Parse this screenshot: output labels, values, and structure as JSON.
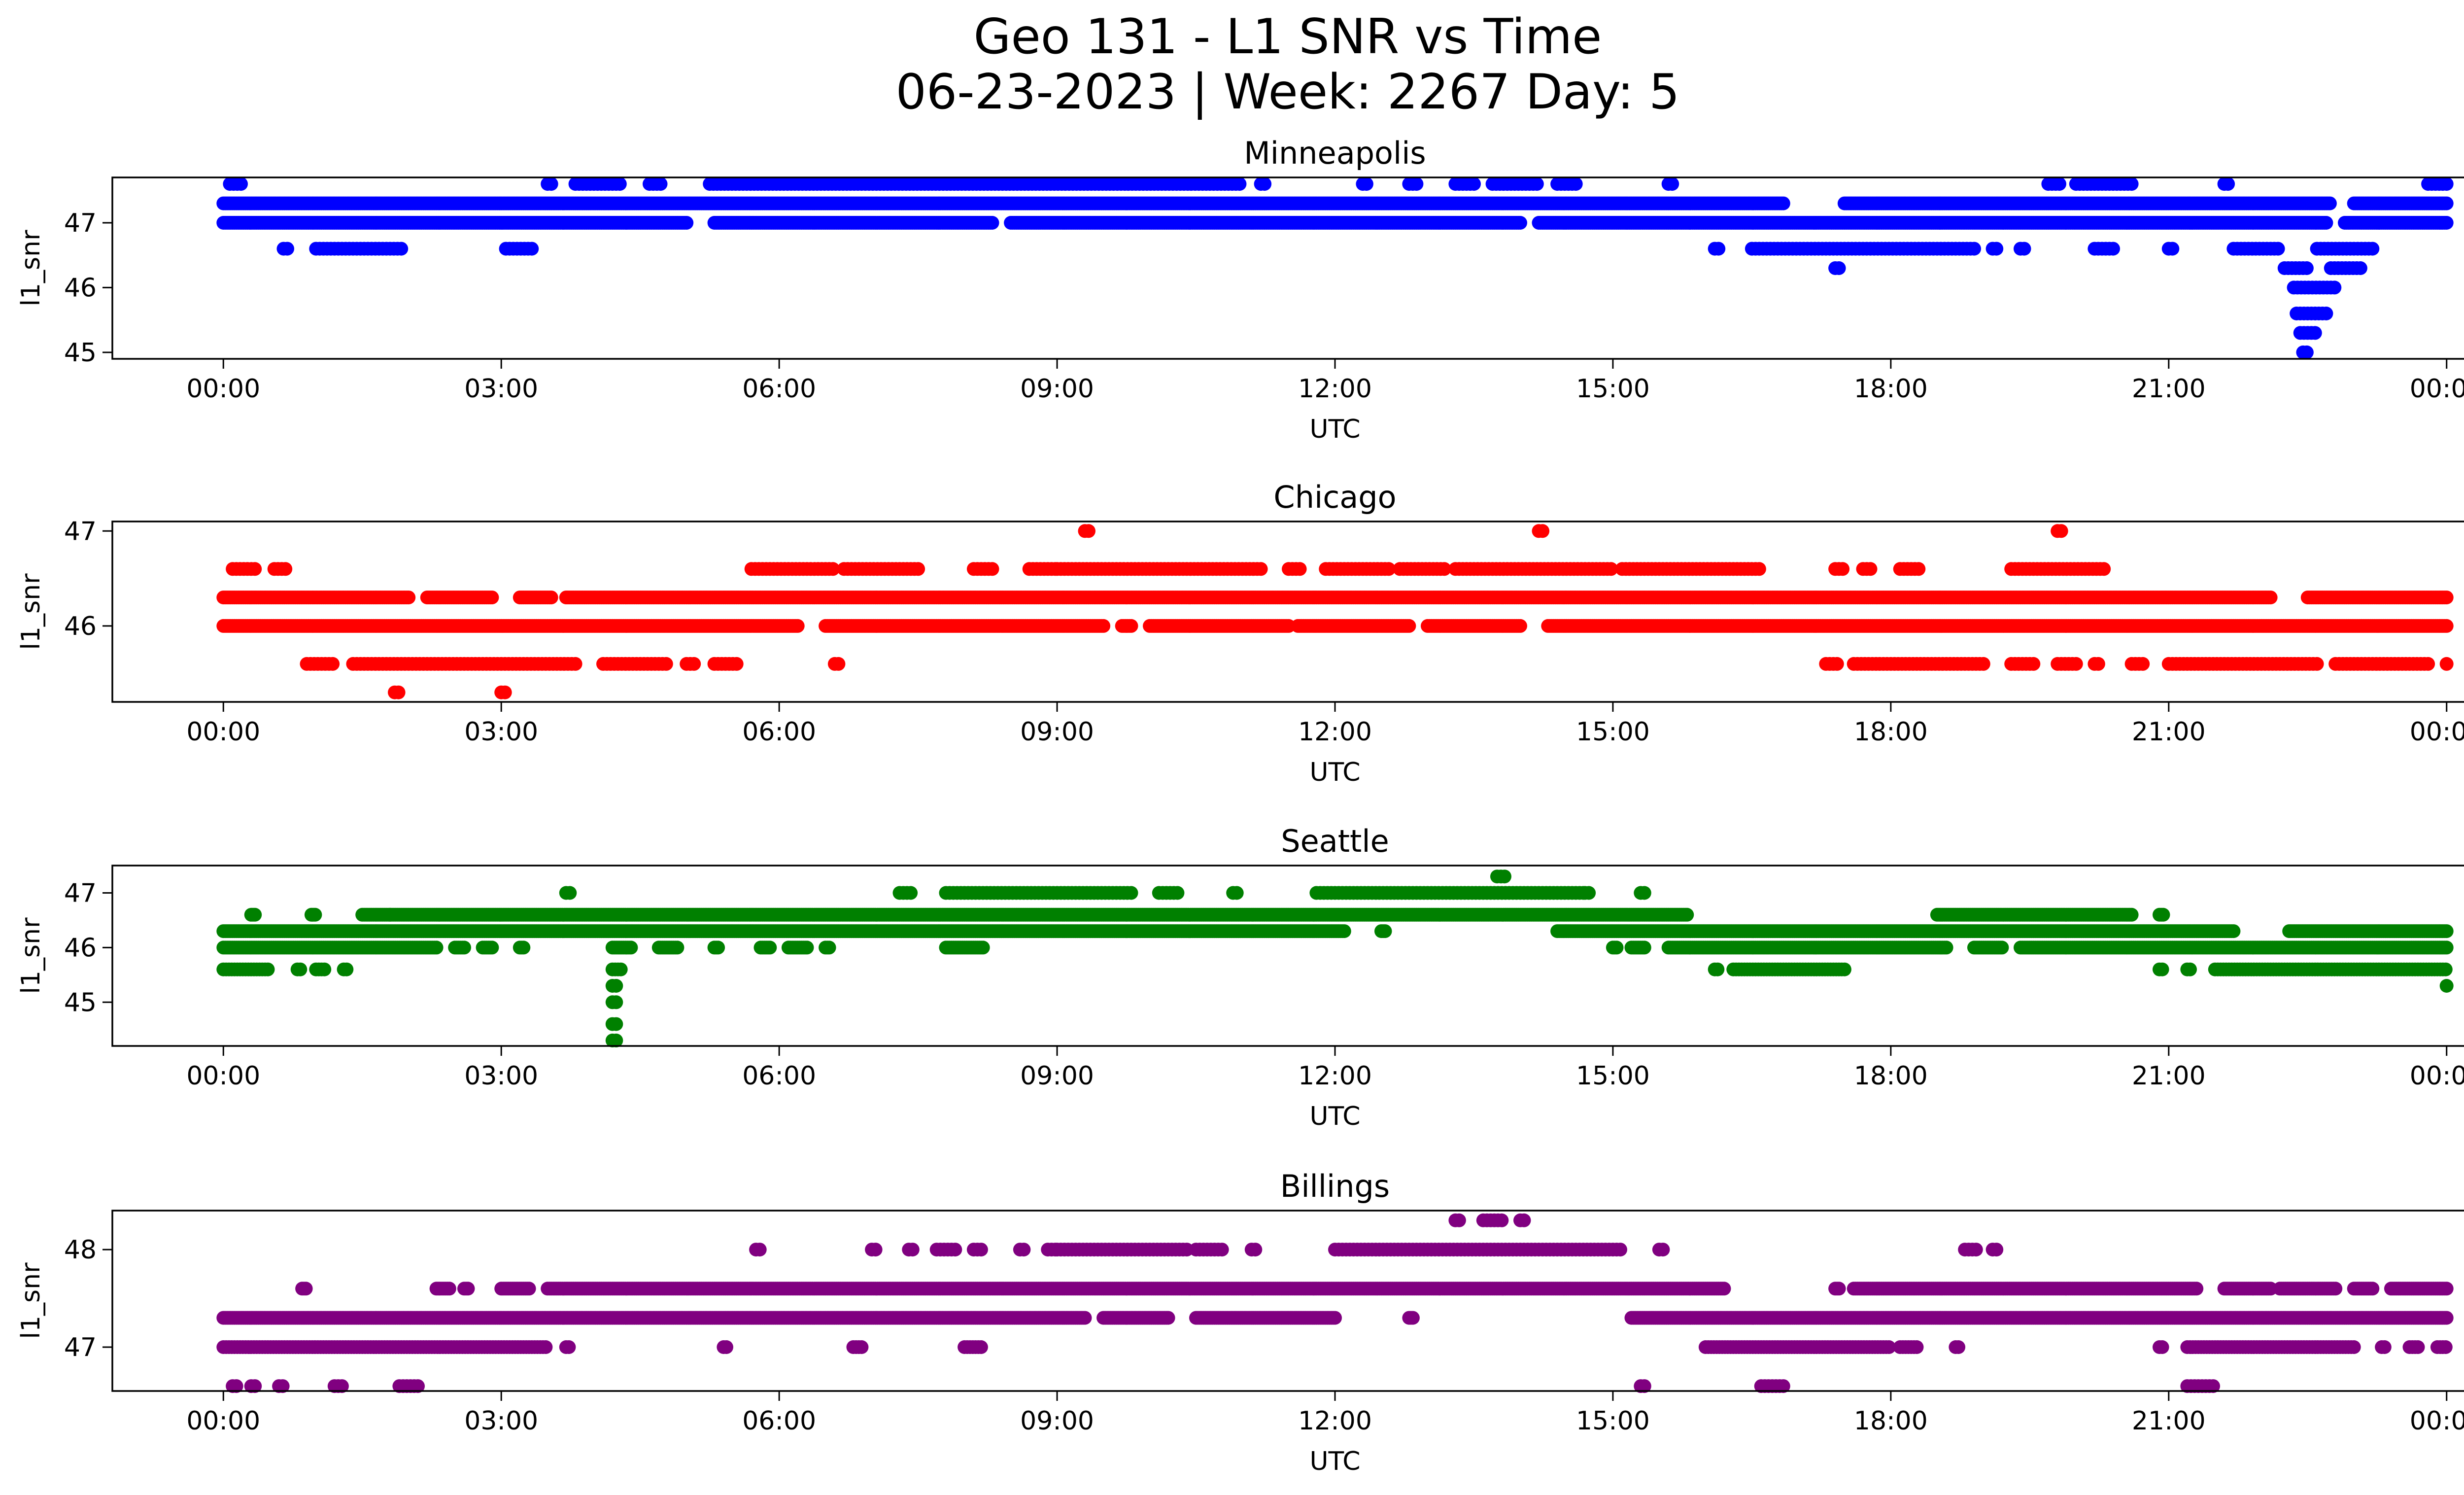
{
  "figure": {
    "title_line1": "Geo 131 - L1 SNR vs Time",
    "title_line2": "06-23-2023 | Week: 2267 Day: 5"
  },
  "chart_data": [
    {
      "type": "scatter",
      "title": "Minneapolis",
      "xlabel": "UTC",
      "ylabel": "l1_snr",
      "color": "#0000ff",
      "xlim": [
        "00:00",
        "24:00"
      ],
      "x_ticks": [
        "00:00",
        "03:00",
        "06:00",
        "09:00",
        "12:00",
        "15:00",
        "18:00",
        "21:00",
        "00:00"
      ],
      "ylim": [
        44.9,
        47.7
      ],
      "y_ticks": [
        45,
        46,
        47
      ],
      "grid": false,
      "legend": "none",
      "bands": [
        {
          "y": 47.6,
          "ranges": [
            [
              0.07,
              0.2
            ],
            [
              3.5,
              3.55
            ],
            [
              3.8,
              4.3
            ],
            [
              4.6,
              4.75
            ],
            [
              5.25,
              11.0
            ],
            [
              11.2,
              11.25
            ],
            [
              12.3,
              12.35
            ],
            [
              12.8,
              12.9
            ],
            [
              13.3,
              13.5
            ],
            [
              13.7,
              14.2
            ],
            [
              14.4,
              14.6
            ],
            [
              15.6,
              15.65
            ],
            [
              19.7,
              19.85
            ],
            [
              20.0,
              20.6
            ],
            [
              21.6,
              21.65
            ],
            [
              23.8,
              24.0
            ]
          ],
          "step": 0.04
        },
        {
          "y": 47.3,
          "ranges": [
            [
              0.0,
              16.85
            ],
            [
              17.5,
              22.75
            ],
            [
              23.0,
              24.0
            ]
          ],
          "step": 0.02
        },
        {
          "y": 47.0,
          "ranges": [
            [
              0.0,
              5.0
            ],
            [
              5.3,
              8.3
            ],
            [
              8.5,
              14.0
            ],
            [
              14.2,
              22.7
            ],
            [
              22.9,
              24.0
            ]
          ],
          "step": 0.02
        },
        {
          "y": 46.6,
          "ranges": [
            [
              0.65,
              0.7
            ],
            [
              1.0,
              1.95
            ],
            [
              3.05,
              3.35
            ],
            [
              16.1,
              16.15
            ],
            [
              16.5,
              18.9
            ],
            [
              19.1,
              19.15
            ],
            [
              19.4,
              19.45
            ],
            [
              20.2,
              20.4
            ],
            [
              21.0,
              21.05
            ],
            [
              21.7,
              22.2
            ],
            [
              22.6,
              23.2
            ]
          ],
          "step": 0.04
        },
        {
          "y": 46.3,
          "ranges": [
            [
              17.4,
              17.45
            ],
            [
              22.25,
              22.5
            ],
            [
              22.75,
              23.1
            ]
          ],
          "step": 0.04
        },
        {
          "y": 46.0,
          "ranges": [
            [
              22.35,
              22.8
            ]
          ],
          "step": 0.04
        },
        {
          "y": 45.6,
          "ranges": [
            [
              22.38,
              22.72
            ]
          ],
          "step": 0.04
        },
        {
          "y": 45.3,
          "ranges": [
            [
              22.42,
              22.58
            ]
          ],
          "step": 0.04
        },
        {
          "y": 45.0,
          "ranges": [
            [
              22.45,
              22.5
            ]
          ],
          "step": 0.04
        }
      ]
    },
    {
      "type": "scatter",
      "title": "Chicago",
      "xlabel": "UTC",
      "ylabel": "l1_snr",
      "color": "#ff0000",
      "xlim": [
        "00:00",
        "24:00"
      ],
      "x_ticks": [
        "00:00",
        "03:00",
        "06:00",
        "09:00",
        "12:00",
        "15:00",
        "18:00",
        "21:00",
        "00:00"
      ],
      "ylim": [
        45.2,
        47.1
      ],
      "y_ticks": [
        46,
        47
      ],
      "grid": false,
      "legend": "none",
      "bands": [
        {
          "y": 47.0,
          "ranges": [
            [
              9.3,
              9.35
            ],
            [
              14.2,
              14.25
            ],
            [
              19.8,
              19.85
            ]
          ],
          "step": 0.04
        },
        {
          "y": 46.6,
          "ranges": [
            [
              0.1,
              0.35
            ],
            [
              0.55,
              0.7
            ],
            [
              5.7,
              6.6
            ],
            [
              6.7,
              7.5
            ],
            [
              8.1,
              8.3
            ],
            [
              8.7,
              9.0
            ],
            [
              9.0,
              11.2
            ],
            [
              11.5,
              11.65
            ],
            [
              11.9,
              12.6
            ],
            [
              12.7,
              13.2
            ],
            [
              13.3,
              15.0
            ],
            [
              15.1,
              16.6
            ],
            [
              17.4,
              17.5
            ],
            [
              17.7,
              17.8
            ],
            [
              18.1,
              18.3
            ],
            [
              19.3,
              20.3
            ]
          ],
          "step": 0.04
        },
        {
          "y": 46.3,
          "ranges": [
            [
              0.0,
              2.0
            ],
            [
              2.2,
              2.9
            ],
            [
              3.2,
              3.55
            ],
            [
              3.7,
              22.1
            ],
            [
              22.5,
              24.0
            ]
          ],
          "step": 0.02
        },
        {
          "y": 46.0,
          "ranges": [
            [
              0.0,
              6.2
            ],
            [
              6.5,
              9.5
            ],
            [
              9.7,
              9.8
            ],
            [
              10.0,
              11.5
            ],
            [
              11.6,
              12.8
            ],
            [
              13.0,
              14.0
            ],
            [
              14.3,
              24.0
            ]
          ],
          "step": 0.02
        },
        {
          "y": 45.6,
          "ranges": [
            [
              0.9,
              1.2
            ],
            [
              1.4,
              3.8
            ],
            [
              4.1,
              4.8
            ],
            [
              5.0,
              5.1
            ],
            [
              5.3,
              5.55
            ],
            [
              6.6,
              6.65
            ],
            [
              17.3,
              17.45
            ],
            [
              17.6,
              19.0
            ],
            [
              19.3,
              19.55
            ],
            [
              19.8,
              20.0
            ],
            [
              20.2,
              20.25
            ],
            [
              20.6,
              20.75
            ],
            [
              21.0,
              22.6
            ],
            [
              22.8,
              23.8
            ],
            [
              24.0,
              24.0
            ]
          ],
          "step": 0.04
        },
        {
          "y": 45.3,
          "ranges": [
            [
              1.85,
              1.9
            ],
            [
              3.0,
              3.05
            ]
          ],
          "step": 0.04
        }
      ]
    },
    {
      "type": "scatter",
      "title": "Seattle",
      "xlabel": "UTC",
      "ylabel": "l1_snr",
      "color": "#008000",
      "xlim": [
        "00:00",
        "24:00"
      ],
      "x_ticks": [
        "00:00",
        "03:00",
        "06:00",
        "09:00",
        "12:00",
        "15:00",
        "18:00",
        "21:00",
        "00:00"
      ],
      "ylim": [
        44.2,
        47.5
      ],
      "y_ticks": [
        45,
        46,
        47
      ],
      "grid": false,
      "legend": "none",
      "bands": [
        {
          "y": 47.3,
          "ranges": [
            [
              13.75,
              13.85
            ]
          ],
          "step": 0.04
        },
        {
          "y": 47.0,
          "ranges": [
            [
              3.7,
              3.75
            ],
            [
              7.3,
              7.45
            ],
            [
              7.8,
              9.8
            ],
            [
              10.1,
              10.3
            ],
            [
              10.9,
              10.95
            ],
            [
              11.8,
              14.7
            ],
            [
              14.7,
              14.75
            ],
            [
              15.3,
              15.35
            ]
          ],
          "step": 0.04
        },
        {
          "y": 46.6,
          "ranges": [
            [
              0.3,
              0.35
            ],
            [
              0.95,
              1.0
            ],
            [
              1.5,
              1.8
            ],
            [
              1.8,
              15.8
            ],
            [
              18.5,
              20.6
            ],
            [
              20.9,
              20.95
            ]
          ],
          "step": 0.02
        },
        {
          "y": 46.3,
          "ranges": [
            [
              0.0,
              12.1
            ],
            [
              12.5,
              12.55
            ],
            [
              14.4,
              21.7
            ],
            [
              22.3,
              24.0
            ]
          ],
          "step": 0.02
        },
        {
          "y": 46.0,
          "ranges": [
            [
              0.0,
              2.3
            ],
            [
              2.5,
              2.6
            ],
            [
              2.8,
              2.9
            ],
            [
              3.2,
              3.25
            ],
            [
              4.2,
              4.4
            ],
            [
              4.7,
              4.9
            ],
            [
              5.3,
              5.35
            ],
            [
              5.8,
              5.9
            ],
            [
              6.1,
              6.3
            ],
            [
              6.5,
              6.55
            ],
            [
              7.8,
              8.2
            ],
            [
              15.0,
              15.05
            ],
            [
              15.2,
              15.35
            ],
            [
              15.6,
              18.6
            ],
            [
              18.9,
              19.2
            ],
            [
              19.4,
              24.0
            ]
          ],
          "step": 0.02
        },
        {
          "y": 45.6,
          "ranges": [
            [
              0.0,
              0.5
            ],
            [
              0.8,
              0.85
            ],
            [
              1.0,
              1.1
            ],
            [
              1.3,
              1.35
            ],
            [
              4.2,
              4.3
            ],
            [
              16.1,
              16.15
            ],
            [
              16.3,
              17.5
            ],
            [
              20.9,
              20.95
            ],
            [
              21.2,
              21.25
            ],
            [
              21.5,
              24.0
            ]
          ],
          "step": 0.03
        },
        {
          "y": 45.3,
          "ranges": [
            [
              4.2,
              4.25
            ],
            [
              24.0,
              24.0
            ]
          ],
          "step": 0.04
        },
        {
          "y": 45.0,
          "ranges": [
            [
              4.2,
              4.25
            ]
          ],
          "step": 0.04
        },
        {
          "y": 44.6,
          "ranges": [
            [
              4.2,
              4.25
            ]
          ],
          "step": 0.04
        },
        {
          "y": 44.3,
          "ranges": [
            [
              4.2,
              4.25
            ]
          ],
          "step": 0.04
        }
      ]
    },
    {
      "type": "scatter",
      "title": "Billings",
      "xlabel": "UTC",
      "ylabel": "l1_snr",
      "color": "#800080",
      "xlim": [
        "00:00",
        "24:00"
      ],
      "x_ticks": [
        "00:00",
        "03:00",
        "06:00",
        "09:00",
        "12:00",
        "15:00",
        "18:00",
        "21:00",
        "00:00"
      ],
      "ylim": [
        46.55,
        48.4
      ],
      "y_ticks": [
        47,
        48
      ],
      "grid": false,
      "legend": "none",
      "bands": [
        {
          "y": 48.3,
          "ranges": [
            [
              13.3,
              13.35
            ],
            [
              13.6,
              13.8
            ],
            [
              14.0,
              14.05
            ]
          ],
          "step": 0.04
        },
        {
          "y": 48.0,
          "ranges": [
            [
              5.75,
              5.8
            ],
            [
              7.0,
              7.05
            ],
            [
              7.4,
              7.45
            ],
            [
              7.7,
              7.9
            ],
            [
              8.1,
              8.2
            ],
            [
              8.6,
              8.65
            ],
            [
              8.9,
              9.0
            ],
            [
              9.0,
              10.4
            ],
            [
              10.5,
              10.8
            ],
            [
              11.1,
              11.15
            ],
            [
              12.0,
              15.1
            ],
            [
              15.5,
              15.55
            ],
            [
              18.8,
              18.95
            ],
            [
              19.1,
              19.15
            ]
          ],
          "step": 0.04
        },
        {
          "y": 47.6,
          "ranges": [
            [
              0.85,
              0.9
            ],
            [
              2.3,
              2.45
            ],
            [
              2.6,
              2.65
            ],
            [
              3.0,
              3.3
            ],
            [
              3.5,
              16.2
            ],
            [
              17.4,
              17.45
            ],
            [
              17.6,
              21.3
            ],
            [
              21.6,
              22.1
            ],
            [
              22.2,
              22.8
            ],
            [
              23.0,
              23.2
            ],
            [
              23.4,
              24.0
            ]
          ],
          "step": 0.02
        },
        {
          "y": 47.3,
          "ranges": [
            [
              0.0,
              9.3
            ],
            [
              9.5,
              10.2
            ],
            [
              10.5,
              12.0
            ],
            [
              12.8,
              12.85
            ],
            [
              15.2,
              24.0
            ]
          ],
          "step": 0.02
        },
        {
          "y": 47.0,
          "ranges": [
            [
              0.0,
              3.5
            ],
            [
              3.7,
              3.75
            ],
            [
              5.4,
              5.45
            ],
            [
              6.8,
              6.9
            ],
            [
              8.0,
              8.2
            ],
            [
              16.0,
              18.0
            ],
            [
              18.1,
              18.3
            ],
            [
              18.7,
              18.75
            ],
            [
              20.9,
              20.95
            ],
            [
              21.2,
              23.0
            ],
            [
              23.3,
              23.35
            ],
            [
              23.6,
              23.7
            ],
            [
              23.9,
              24.0
            ]
          ],
          "step": 0.03
        },
        {
          "y": 46.6,
          "ranges": [
            [
              0.1,
              0.15
            ],
            [
              0.3,
              0.35
            ],
            [
              0.6,
              0.65
            ],
            [
              1.2,
              1.3
            ],
            [
              1.9,
              2.1
            ],
            [
              15.3,
              15.35
            ],
            [
              16.6,
              16.85
            ],
            [
              21.2,
              21.5
            ]
          ],
          "step": 0.04
        }
      ]
    }
  ]
}
